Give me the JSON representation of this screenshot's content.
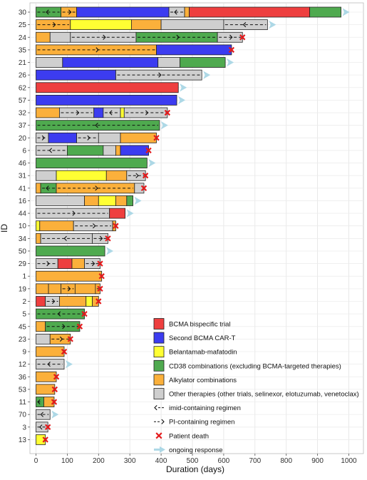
{
  "chart_data": {
    "type": "bar",
    "orientation": "horizontal",
    "subtype": "swimmer-plot",
    "xlabel": "Duration (days)",
    "ylabel": "ID",
    "xlim": [
      0,
      1000
    ],
    "xticks": [
      0,
      100,
      200,
      300,
      400,
      500,
      600,
      700,
      800,
      900,
      1000
    ],
    "grid": true,
    "legend_position": "bottom-right",
    "colors": {
      "bispecific": "#ee3f3f",
      "car_t": "#3c3cf0",
      "belantamab": "#ffff33",
      "cd38": "#4faa4f",
      "alkylator": "#fbb03b",
      "other": "#cfcfcf",
      "death": "#e41a1c",
      "ongoing": "#add8e6"
    },
    "legend": [
      {
        "key": "bispecific",
        "label": "BCMA bispecific trial",
        "kind": "fill"
      },
      {
        "key": "car_t",
        "label": "Second BCMA CAR-T",
        "kind": "fill"
      },
      {
        "key": "belantamab",
        "label": "Belantamab-mafatodin",
        "kind": "fill"
      },
      {
        "key": "cd38",
        "label": "CD38 combinations (excluding BCMA-targeted therapies)",
        "kind": "fill"
      },
      {
        "key": "alkylator",
        "label": "Alkylator combinations",
        "kind": "fill"
      },
      {
        "key": "other",
        "label": "Other therapies (other trials, selinexor, elotuzumab, venetoclax)",
        "kind": "fill"
      },
      {
        "key": "imid",
        "label": "imid-containing regimen",
        "kind": "imid"
      },
      {
        "key": "pi",
        "label": "PI-containing regimen",
        "kind": "pi"
      },
      {
        "key": "death",
        "label": "Patient death",
        "kind": "death"
      },
      {
        "key": "ongoing",
        "label": "ongoing response",
        "kind": "ongoing"
      }
    ],
    "patients": [
      {
        "id": "30",
        "segments": [
          {
            "s": 0,
            "e": 80,
            "c": "cd38",
            "imid": true
          },
          {
            "s": 80,
            "e": 130,
            "c": "alkylator",
            "pi": true
          },
          {
            "s": 130,
            "e": 425,
            "c": "car_t"
          },
          {
            "s": 425,
            "e": 475,
            "c": "other",
            "imid": true
          },
          {
            "s": 475,
            "e": 490,
            "c": "alkylator"
          },
          {
            "s": 490,
            "e": 875,
            "c": "bispecific"
          },
          {
            "s": 875,
            "e": 975,
            "c": "cd38"
          }
        ],
        "death": false,
        "ongoing": true
      },
      {
        "id": "25",
        "segments": [
          {
            "s": 0,
            "e": 110,
            "c": "alkylator",
            "pi": true
          },
          {
            "s": 110,
            "e": 305,
            "c": "belantamab"
          },
          {
            "s": 305,
            "e": 400,
            "c": "alkylator"
          },
          {
            "s": 400,
            "e": 600,
            "c": "other"
          },
          {
            "s": 600,
            "e": 740,
            "c": "other",
            "imid": true
          }
        ],
        "death": false,
        "ongoing": true
      },
      {
        "id": "24",
        "segments": [
          {
            "s": 0,
            "e": 45,
            "c": "alkylator"
          },
          {
            "s": 45,
            "e": 110,
            "c": "other"
          },
          {
            "s": 110,
            "e": 320,
            "c": "other",
            "pi": true
          },
          {
            "s": 320,
            "e": 580,
            "c": "cd38",
            "pi": true
          },
          {
            "s": 580,
            "e": 660,
            "c": "other",
            "pi": true
          }
        ],
        "death": true,
        "ongoing": false
      },
      {
        "id": "35",
        "segments": [
          {
            "s": 0,
            "e": 385,
            "c": "alkylator",
            "pi": true
          },
          {
            "s": 385,
            "e": 625,
            "c": "car_t"
          }
        ],
        "death": true,
        "ongoing": false
      },
      {
        "id": "21",
        "segments": [
          {
            "s": 0,
            "e": 85,
            "c": "other"
          },
          {
            "s": 85,
            "e": 390,
            "c": "car_t"
          },
          {
            "s": 390,
            "e": 460,
            "c": "other"
          },
          {
            "s": 460,
            "e": 605,
            "c": "cd38"
          }
        ],
        "death": false,
        "ongoing": true
      },
      {
        "id": "26",
        "segments": [
          {
            "s": 0,
            "e": 255,
            "c": "car_t"
          },
          {
            "s": 255,
            "e": 530,
            "c": "other",
            "pi": true
          }
        ],
        "death": false,
        "ongoing": true
      },
      {
        "id": "62",
        "segments": [
          {
            "s": 0,
            "e": 455,
            "c": "bispecific"
          }
        ],
        "death": false,
        "ongoing": true
      },
      {
        "id": "57",
        "segments": [
          {
            "s": 0,
            "e": 450,
            "c": "car_t"
          }
        ],
        "death": false,
        "ongoing": true
      },
      {
        "id": "32",
        "segments": [
          {
            "s": 0,
            "e": 75,
            "c": "alkylator"
          },
          {
            "s": 75,
            "e": 185,
            "c": "other",
            "pi": true
          },
          {
            "s": 185,
            "e": 215,
            "c": "car_t"
          },
          {
            "s": 215,
            "e": 270,
            "c": "other",
            "imid": true
          },
          {
            "s": 270,
            "e": 282,
            "c": "belantamab"
          },
          {
            "s": 282,
            "e": 420,
            "c": "other",
            "pi": true
          }
        ],
        "death": true,
        "ongoing": false
      },
      {
        "id": "37",
        "segments": [
          {
            "s": 0,
            "e": 395,
            "c": "cd38",
            "imid": true
          }
        ],
        "death": false,
        "ongoing": true
      },
      {
        "id": "20",
        "segments": [
          {
            "s": 0,
            "e": 40,
            "c": "other",
            "pi": true
          },
          {
            "s": 40,
            "e": 130,
            "c": "car_t"
          },
          {
            "s": 130,
            "e": 200,
            "c": "other",
            "pi": true
          },
          {
            "s": 200,
            "e": 270,
            "c": "other"
          },
          {
            "s": 270,
            "e": 385,
            "c": "alkylator"
          }
        ],
        "death": true,
        "ongoing": false
      },
      {
        "id": "6",
        "segments": [
          {
            "s": 0,
            "e": 100,
            "c": "other",
            "imid": true
          },
          {
            "s": 100,
            "e": 215,
            "c": "cd38"
          },
          {
            "s": 215,
            "e": 255,
            "c": "other"
          },
          {
            "s": 255,
            "e": 270,
            "c": "alkylator"
          },
          {
            "s": 270,
            "e": 360,
            "c": "car_t"
          }
        ],
        "death": true,
        "ongoing": false
      },
      {
        "id": "46",
        "segments": [
          {
            "s": 0,
            "e": 355,
            "c": "cd38"
          }
        ],
        "death": false,
        "ongoing": true
      },
      {
        "id": "31",
        "segments": [
          {
            "s": 0,
            "e": 65,
            "c": "other"
          },
          {
            "s": 65,
            "e": 225,
            "c": "belantamab"
          },
          {
            "s": 225,
            "e": 290,
            "c": "alkylator"
          },
          {
            "s": 290,
            "e": 350,
            "c": "other",
            "pi": true
          }
        ],
        "death": true,
        "ongoing": false
      },
      {
        "id": "41",
        "segments": [
          {
            "s": 0,
            "e": 15,
            "c": "alkylator"
          },
          {
            "s": 15,
            "e": 65,
            "c": "cd38",
            "imid": true
          },
          {
            "s": 65,
            "e": 315,
            "c": "alkylator",
            "pi": true
          },
          {
            "s": 315,
            "e": 345,
            "c": "other"
          }
        ],
        "death": true,
        "ongoing": false
      },
      {
        "id": "16",
        "segments": [
          {
            "s": 0,
            "e": 155,
            "c": "other"
          },
          {
            "s": 155,
            "e": 200,
            "c": "alkylator"
          },
          {
            "s": 200,
            "e": 255,
            "c": "belantamab"
          },
          {
            "s": 255,
            "e": 290,
            "c": "alkylator"
          },
          {
            "s": 290,
            "e": 310,
            "c": "cd38"
          }
        ],
        "death": false,
        "ongoing": true
      },
      {
        "id": "44",
        "segments": [
          {
            "s": 0,
            "e": 235,
            "c": "other",
            "pi": true
          },
          {
            "s": 235,
            "e": 285,
            "c": "bispecific"
          }
        ],
        "death": false,
        "ongoing": true
      },
      {
        "id": "10",
        "segments": [
          {
            "s": 0,
            "e": 12,
            "c": "belantamab"
          },
          {
            "s": 12,
            "e": 120,
            "c": "alkylator"
          },
          {
            "s": 120,
            "e": 245,
            "c": "other",
            "pi": true
          },
          {
            "s": 245,
            "e": 255,
            "c": "alkylator"
          }
        ],
        "death": true,
        "ongoing": false
      },
      {
        "id": "34",
        "segments": [
          {
            "s": 0,
            "e": 15,
            "c": "alkylator"
          },
          {
            "s": 15,
            "e": 180,
            "c": "other",
            "imid": true
          },
          {
            "s": 180,
            "e": 230,
            "c": "other",
            "pi": true
          }
        ],
        "death": true,
        "ongoing": false
      },
      {
        "id": "50",
        "segments": [
          {
            "s": 0,
            "e": 220,
            "c": "cd38"
          }
        ],
        "death": false,
        "ongoing": true
      },
      {
        "id": "29",
        "segments": [
          {
            "s": 0,
            "e": 70,
            "c": "other",
            "pi": true
          },
          {
            "s": 70,
            "e": 115,
            "c": "bispecific"
          },
          {
            "s": 115,
            "e": 155,
            "c": "alkylator"
          },
          {
            "s": 155,
            "e": 205,
            "c": "other",
            "pi": true
          }
        ],
        "death": true,
        "ongoing": false
      },
      {
        "id": "1",
        "segments": [
          {
            "s": 0,
            "e": 210,
            "c": "alkylator"
          }
        ],
        "death": true,
        "ongoing": false
      },
      {
        "id": "19",
        "segments": [
          {
            "s": 0,
            "e": 40,
            "c": "alkylator"
          },
          {
            "s": 40,
            "e": 80,
            "c": "alkylator"
          },
          {
            "s": 80,
            "e": 125,
            "c": "alkylator",
            "pi": true
          },
          {
            "s": 125,
            "e": 190,
            "c": "alkylator"
          },
          {
            "s": 190,
            "e": 205,
            "c": "alkylator",
            "pi": true
          }
        ],
        "death": true,
        "ongoing": false
      },
      {
        "id": "2",
        "segments": [
          {
            "s": 0,
            "e": 30,
            "c": "bispecific"
          },
          {
            "s": 30,
            "e": 75,
            "c": "other",
            "pi": true
          },
          {
            "s": 75,
            "e": 160,
            "c": "alkylator"
          },
          {
            "s": 160,
            "e": 180,
            "c": "belantamab"
          },
          {
            "s": 180,
            "e": 200,
            "c": "alkylator"
          }
        ],
        "death": true,
        "ongoing": false
      },
      {
        "id": "5",
        "segments": [
          {
            "s": 0,
            "e": 155,
            "c": "cd38",
            "imid": true
          }
        ],
        "death": true,
        "ongoing": false
      },
      {
        "id": "45",
        "segments": [
          {
            "s": 0,
            "e": 30,
            "c": "alkylator"
          },
          {
            "s": 30,
            "e": 140,
            "c": "cd38",
            "pi": true
          }
        ],
        "death": true,
        "ongoing": false
      },
      {
        "id": "23",
        "segments": [
          {
            "s": 0,
            "e": 45,
            "c": "other"
          },
          {
            "s": 45,
            "e": 110,
            "c": "alkylator",
            "pi": true
          }
        ],
        "death": true,
        "ongoing": false
      },
      {
        "id": "9",
        "segments": [
          {
            "s": 0,
            "e": 90,
            "c": "alkylator"
          }
        ],
        "death": true,
        "ongoing": false
      },
      {
        "id": "12",
        "segments": [
          {
            "s": 0,
            "e": 90,
            "c": "other",
            "imid": true
          }
        ],
        "death": false,
        "ongoing": true
      },
      {
        "id": "36",
        "segments": [
          {
            "s": 0,
            "e": 65,
            "c": "alkylator"
          }
        ],
        "death": true,
        "ongoing": false
      },
      {
        "id": "53",
        "segments": [
          {
            "s": 0,
            "e": 60,
            "c": "alkylator"
          }
        ],
        "death": true,
        "ongoing": false
      },
      {
        "id": "11",
        "segments": [
          {
            "s": 0,
            "e": 25,
            "c": "cd38",
            "imid": true
          },
          {
            "s": 25,
            "e": 58,
            "c": "alkylator"
          }
        ],
        "death": true,
        "ongoing": false
      },
      {
        "id": "70",
        "segments": [
          {
            "s": 0,
            "e": 45,
            "c": "other",
            "imid": true
          }
        ],
        "death": false,
        "ongoing": true
      },
      {
        "id": "3",
        "segments": [
          {
            "s": 0,
            "e": 38,
            "c": "other",
            "imid": true
          }
        ],
        "death": true,
        "ongoing": false
      },
      {
        "id": "13",
        "segments": [
          {
            "s": 0,
            "e": 30,
            "c": "belantamab"
          }
        ],
        "death": true,
        "ongoing": false
      }
    ]
  }
}
